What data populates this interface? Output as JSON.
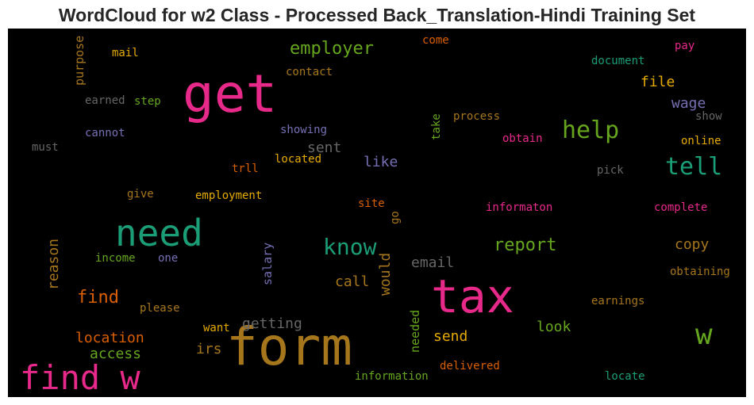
{
  "chart_data": {
    "type": "wordcloud",
    "title": "WordCloud for w2 Class - Processed Back_Translation-Hindi Training Set",
    "background": "#000000",
    "palette": [
      "#e7298a",
      "#1b9e77",
      "#66a61e",
      "#a6761d",
      "#d95f02",
      "#e6ab02",
      "#7570b3",
      "#666666"
    ],
    "words": [
      {
        "text": "form",
        "color": "#a6761d",
        "orientation": "horizontal"
      },
      {
        "text": "get",
        "color": "#e7298a",
        "orientation": "horizontal"
      },
      {
        "text": "tax",
        "color": "#e7298a",
        "orientation": "horizontal"
      },
      {
        "text": "need",
        "color": "#1b9e77",
        "orientation": "horizontal"
      },
      {
        "text": "find w",
        "color": "#e7298a",
        "orientation": "horizontal"
      },
      {
        "text": "w",
        "color": "#66a61e",
        "orientation": "horizontal"
      },
      {
        "text": "help",
        "color": "#66a61e",
        "orientation": "horizontal"
      },
      {
        "text": "tell",
        "color": "#1b9e77",
        "orientation": "horizontal"
      },
      {
        "text": "know",
        "color": "#1b9e77",
        "orientation": "horizontal"
      },
      {
        "text": "employer",
        "color": "#66a61e",
        "orientation": "horizontal"
      },
      {
        "text": "report",
        "color": "#66a61e",
        "orientation": "horizontal"
      },
      {
        "text": "find",
        "color": "#d95f02",
        "orientation": "horizontal"
      },
      {
        "text": "location",
        "color": "#d95f02",
        "orientation": "horizontal"
      },
      {
        "text": "reason",
        "color": "#a6761d",
        "orientation": "vertical"
      },
      {
        "text": "getting",
        "color": "#666666",
        "orientation": "horizontal"
      },
      {
        "text": "email",
        "color": "#666666",
        "orientation": "horizontal"
      },
      {
        "text": "access",
        "color": "#66a61e",
        "orientation": "horizontal"
      },
      {
        "text": "call",
        "color": "#a6761d",
        "orientation": "horizontal"
      },
      {
        "text": "would",
        "color": "#a6761d",
        "orientation": "vertical"
      },
      {
        "text": "copy",
        "color": "#a6761d",
        "orientation": "horizontal"
      },
      {
        "text": "send",
        "color": "#e6ab02",
        "orientation": "horizontal"
      },
      {
        "text": "look",
        "color": "#66a61e",
        "orientation": "horizontal"
      },
      {
        "text": "irs",
        "color": "#a6761d",
        "orientation": "horizontal"
      },
      {
        "text": "file",
        "color": "#e6ab02",
        "orientation": "horizontal"
      },
      {
        "text": "wage",
        "color": "#7570b3",
        "orientation": "horizontal"
      },
      {
        "text": "sent",
        "color": "#666666",
        "orientation": "horizontal"
      },
      {
        "text": "like",
        "color": "#7570b3",
        "orientation": "horizontal"
      },
      {
        "text": "salary",
        "color": "#7570b3",
        "orientation": "vertical"
      },
      {
        "text": "needed",
        "color": "#66a61e",
        "orientation": "vertical"
      },
      {
        "text": "purpose",
        "color": "#a6761d",
        "orientation": "vertical"
      },
      {
        "text": "mail",
        "color": "#e6ab02",
        "orientation": "horizontal"
      },
      {
        "text": "contact",
        "color": "#a6761d",
        "orientation": "horizontal"
      },
      {
        "text": "earned",
        "color": "#666666",
        "orientation": "horizontal"
      },
      {
        "text": "step",
        "color": "#66a61e",
        "orientation": "horizontal"
      },
      {
        "text": "cannot",
        "color": "#7570b3",
        "orientation": "horizontal"
      },
      {
        "text": "showing",
        "color": "#7570b3",
        "orientation": "horizontal"
      },
      {
        "text": "must",
        "color": "#666666",
        "orientation": "horizontal"
      },
      {
        "text": "trll",
        "color": "#d95f02",
        "orientation": "horizontal"
      },
      {
        "text": "located",
        "color": "#e6ab02",
        "orientation": "horizontal"
      },
      {
        "text": "give",
        "color": "#a6761d",
        "orientation": "horizontal"
      },
      {
        "text": "employment",
        "color": "#e6ab02",
        "orientation": "horizontal"
      },
      {
        "text": "site",
        "color": "#d95f02",
        "orientation": "horizontal"
      },
      {
        "text": "go",
        "color": "#a6761d",
        "orientation": "vertical"
      },
      {
        "text": "income",
        "color": "#66a61e",
        "orientation": "horizontal"
      },
      {
        "text": "one",
        "color": "#7570b3",
        "orientation": "horizontal"
      },
      {
        "text": "please",
        "color": "#a6761d",
        "orientation": "horizontal"
      },
      {
        "text": "want",
        "color": "#e6ab02",
        "orientation": "horizontal"
      },
      {
        "text": "come",
        "color": "#d95f02",
        "orientation": "horizontal"
      },
      {
        "text": "process",
        "color": "#a6761d",
        "orientation": "horizontal"
      },
      {
        "text": "take",
        "color": "#66a61e",
        "orientation": "vertical"
      },
      {
        "text": "obtain",
        "color": "#e7298a",
        "orientation": "horizontal"
      },
      {
        "text": "document",
        "color": "#1b9e77",
        "orientation": "horizontal"
      },
      {
        "text": "pay",
        "color": "#e7298a",
        "orientation": "horizontal"
      },
      {
        "text": "show",
        "color": "#666666",
        "orientation": "horizontal"
      },
      {
        "text": "online",
        "color": "#e6ab02",
        "orientation": "horizontal"
      },
      {
        "text": "pick",
        "color": "#666666",
        "orientation": "horizontal"
      },
      {
        "text": "informaton",
        "color": "#e7298a",
        "orientation": "horizontal"
      },
      {
        "text": "complete",
        "color": "#e7298a",
        "orientation": "horizontal"
      },
      {
        "text": "obtaining",
        "color": "#a6761d",
        "orientation": "horizontal"
      },
      {
        "text": "earnings",
        "color": "#a6761d",
        "orientation": "horizontal"
      },
      {
        "text": "information",
        "color": "#66a61e",
        "orientation": "horizontal"
      },
      {
        "text": "delivered",
        "color": "#d95f02",
        "orientation": "horizontal"
      },
      {
        "text": "locate",
        "color": "#1b9e77",
        "orientation": "horizontal"
      }
    ]
  }
}
